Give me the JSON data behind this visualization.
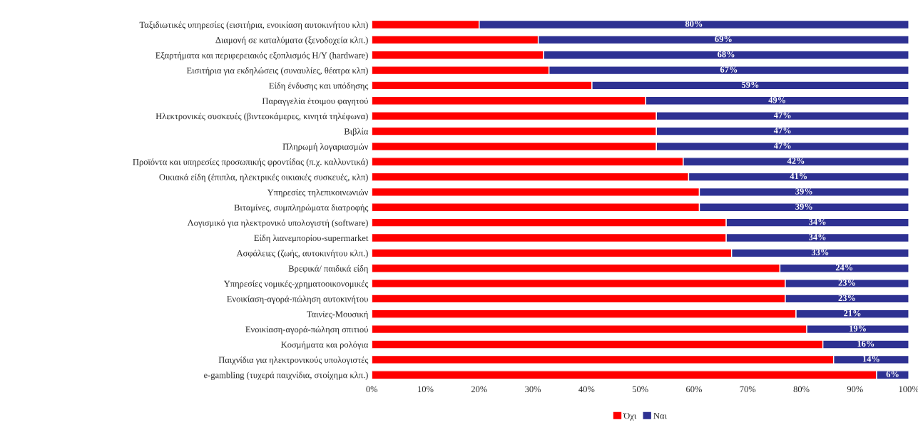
{
  "chart_data": {
    "type": "bar",
    "orientation": "horizontal",
    "stacked": true,
    "categories": [
      "Ταξιδιωτικές υπηρεσίες (εισιτήρια, ενοικίαση αυτοκινήτου κλπ)",
      "Διαμονή σε καταλύματα (ξενοδοχεία κλπ.)",
      "Εξαρτήματα και περιφερειακός εξοπλισμός Η/Υ (hardware)",
      "Εισιτήρια για εκδηλώσεις (συναυλίες, θέατρα κλπ)",
      "Είδη ένδυσης και υπόδησης",
      "Παραγγελία έτοιμου φαγητού",
      "Ηλεκτρονικές συσκευές (βιντεοκάμερες, κινητά τηλέφωνα)",
      "Βιβλία",
      "Πληρωμή λογαριασμών",
      "Προϊόντα και υπηρεσίες προσωπικής φροντίδας (π.χ. καλλυντικά)",
      "Οικιακά είδη (έπιπλα, ηλεκτρικές οικιακές συσκευές, κλπ)",
      "Υπηρεσίες τηλεπικοινωνιών",
      "Βιταμίνες, συμπληρώματα διατροφής",
      "Λογισμικό για ηλεκτρονικό υπολογιστή (software)",
      "Είδη λιανεμπορίου-supermarket",
      "Ασφάλειες (ζωής, αυτοκινήτου κλπ.)",
      "Βρεφικά/ παιδικά είδη",
      "Υπηρεσίες νομικές-χρηματοοικονομικές",
      "Ενοικίαση-αγορά-πώληση αυτοκινήτου",
      "Ταινίες-Μουσική",
      "Ενοικίαση-αγορά-πώληση σπιτιού",
      "Κοσμήματα και ρολόγια",
      "Παιχνίδια για ηλεκτρονικούς υπολογιστές",
      "e-gambling (τυχερά παιχνίδια, στοίχημα κλπ.)"
    ],
    "series": [
      {
        "name": "Όχι",
        "color": "#ff0000",
        "values": [
          20,
          31,
          32,
          33,
          41,
          51,
          53,
          53,
          53,
          58,
          59,
          61,
          61,
          66,
          66,
          67,
          76,
          77,
          77,
          79,
          81,
          84,
          86,
          94
        ]
      },
      {
        "name": "Ναι",
        "color": "#2e3192",
        "values": [
          80,
          69,
          68,
          67,
          59,
          49,
          47,
          47,
          47,
          42,
          41,
          39,
          39,
          34,
          34,
          33,
          24,
          23,
          23,
          21,
          19,
          16,
          14,
          6
        ],
        "value_labels": [
          "80%",
          "69%",
          "68%",
          "67%",
          "59%",
          "49%",
          "47%",
          "47%",
          "47%",
          "42%",
          "41%",
          "39%",
          "39%",
          "34%",
          "34%",
          "33%",
          "24%",
          "23%",
          "23%",
          "21%",
          "19%",
          "16%",
          "14%",
          "6%"
        ]
      }
    ],
    "xlim": [
      0,
      100
    ],
    "xticks": [
      {
        "value": 0,
        "label": "0%"
      },
      {
        "value": 10,
        "label": "10%"
      },
      {
        "value": 20,
        "label": "20%"
      },
      {
        "value": 30,
        "label": "30%"
      },
      {
        "value": 40,
        "label": "40%"
      },
      {
        "value": 50,
        "label": "50%"
      },
      {
        "value": 60,
        "label": "60%"
      },
      {
        "value": 70,
        "label": "70%"
      },
      {
        "value": 80,
        "label": "80%"
      },
      {
        "value": 90,
        "label": "90%"
      },
      {
        "value": 100,
        "label": "100%"
      }
    ],
    "grid": false,
    "legend": "bottom"
  }
}
